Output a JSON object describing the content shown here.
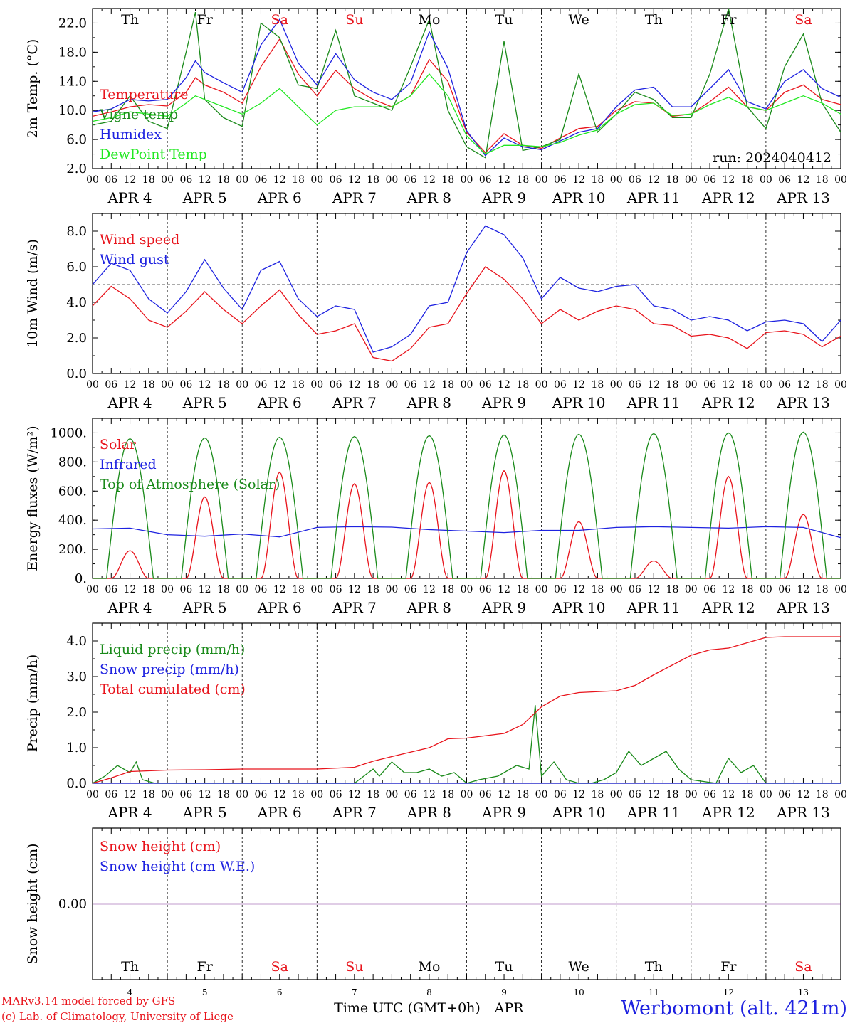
{
  "run_label": "run: 2024040412",
  "footer": {
    "model_line": "MARv3.14 model forced by GFS",
    "credit_line": "(c) Lab. of Climatology, University of Liege",
    "time_axis_label": "Time UTC (GMT+0h)",
    "month_label": "APR",
    "station": "Werbomont (alt. 421m)"
  },
  "weekdays": [
    "Th",
    "Fr",
    "Sa",
    "Su",
    "Mo",
    "Tu",
    "We",
    "Th",
    "Fr",
    "Sa"
  ],
  "weekend_color": "#e8141c",
  "weekday_color": "#000000",
  "day_numbers": [
    "4",
    "5",
    "6",
    "7",
    "8",
    "9",
    "10",
    "11",
    "12",
    "13"
  ],
  "date_labels": [
    "APR  4",
    "APR  5",
    "APR  6",
    "APR  7",
    "APR  8",
    "APR  9",
    "APR 10",
    "APR 11",
    "APR 12",
    "APR 13"
  ],
  "hour_ticks": [
    "00",
    "06",
    "12",
    "18"
  ],
  "chart_data": [
    {
      "type": "line",
      "ylabel": "2m Temp. (°C)",
      "ylim": [
        2,
        24
      ],
      "yticks": [
        "2.0",
        "6.0",
        "10.0",
        "14.0",
        "18.0",
        "22.0"
      ],
      "x_unit": "hours since 2024-04-04 00 UTC",
      "series": [
        {
          "name": "Temperature",
          "color": "#e8141c",
          "x": [
            0,
            6,
            12,
            18,
            24,
            30,
            33,
            36,
            42,
            48,
            54,
            60,
            66,
            72,
            78,
            84,
            90,
            96,
            102,
            108,
            114,
            120,
            126,
            132,
            138,
            144,
            150,
            156,
            162,
            168,
            174,
            180,
            186,
            192,
            198,
            204,
            210,
            216,
            222,
            228,
            234,
            240
          ],
          "values": [
            9.2,
            9.8,
            10.5,
            10.8,
            10.6,
            12.5,
            14.5,
            13.5,
            12.5,
            11.0,
            16.0,
            19.8,
            15.0,
            12.0,
            15.5,
            13.0,
            11.5,
            10.5,
            12.0,
            17.0,
            14.0,
            7.0,
            4.2,
            6.8,
            5.2,
            4.8,
            6.2,
            7.5,
            7.8,
            10.0,
            11.2,
            11.0,
            9.2,
            9.5,
            11.2,
            13.2,
            10.5,
            10.0,
            12.5,
            13.5,
            11.5,
            10.8
          ]
        },
        {
          "name": "Vigne temp",
          "color": "#1a8a1a",
          "x": [
            0,
            6,
            12,
            18,
            24,
            30,
            33,
            36,
            42,
            48,
            54,
            60,
            66,
            72,
            78,
            84,
            90,
            96,
            102,
            108,
            114,
            120,
            126,
            132,
            138,
            144,
            150,
            156,
            162,
            168,
            174,
            180,
            186,
            192,
            198,
            204,
            210,
            216,
            222,
            228,
            234,
            240
          ],
          "values": [
            8.0,
            8.5,
            12.0,
            8.5,
            7.5,
            18.0,
            23.5,
            11.5,
            9.0,
            7.8,
            22.0,
            20.0,
            13.5,
            13.0,
            21.0,
            12.0,
            11.0,
            10.0,
            16.0,
            22.5,
            10.0,
            5.0,
            3.5,
            19.5,
            4.5,
            5.0,
            6.0,
            15.0,
            7.0,
            9.5,
            12.5,
            11.5,
            9.0,
            9.0,
            15.0,
            24.0,
            10.5,
            7.5,
            16.0,
            20.5,
            11.0,
            7.0
          ]
        },
        {
          "name": "Humidex",
          "color": "#1e22e0",
          "x": [
            0,
            6,
            12,
            18,
            24,
            30,
            33,
            36,
            42,
            48,
            54,
            60,
            66,
            72,
            78,
            84,
            90,
            96,
            102,
            108,
            114,
            120,
            126,
            132,
            138,
            144,
            150,
            156,
            162,
            168,
            174,
            180,
            186,
            192,
            198,
            204,
            210,
            216,
            222,
            228,
            234,
            240
          ],
          "values": [
            9.8,
            10.2,
            11.5,
            11.3,
            11.5,
            14.5,
            16.8,
            15.2,
            13.8,
            12.5,
            19.0,
            22.5,
            16.5,
            13.5,
            17.8,
            14.2,
            12.5,
            11.5,
            13.8,
            20.8,
            15.8,
            7.2,
            3.8,
            6.2,
            5.0,
            4.6,
            5.8,
            7.0,
            7.5,
            10.5,
            12.8,
            13.2,
            10.5,
            10.5,
            13.0,
            15.6,
            11.2,
            10.2,
            14.0,
            15.6,
            13.0,
            11.8
          ]
        },
        {
          "name": "DewPoint Temp",
          "color": "#22e822",
          "x": [
            0,
            6,
            12,
            18,
            24,
            30,
            33,
            36,
            42,
            48,
            54,
            60,
            66,
            72,
            78,
            84,
            90,
            96,
            102,
            108,
            114,
            120,
            126,
            132,
            138,
            144,
            150,
            156,
            162,
            168,
            174,
            180,
            186,
            192,
            198,
            204,
            210,
            216,
            222,
            228,
            234,
            240
          ],
          "values": [
            8.5,
            9.0,
            9.8,
            9.5,
            9.2,
            11.0,
            12.0,
            11.5,
            10.5,
            9.5,
            11.0,
            13.0,
            10.5,
            8.0,
            10.0,
            10.5,
            10.5,
            10.5,
            12.0,
            15.0,
            12.0,
            6.5,
            4.0,
            5.2,
            5.2,
            5.0,
            5.6,
            6.6,
            7.3,
            9.5,
            10.8,
            11.0,
            9.3,
            9.5,
            10.8,
            11.8,
            10.5,
            10.0,
            11.0,
            12.0,
            11.0,
            9.5
          ]
        }
      ]
    },
    {
      "type": "line",
      "ylabel": "10m Wind (m/s)",
      "ylim": [
        0,
        9
      ],
      "yticks": [
        "0.0",
        "2.0",
        "4.0",
        "6.0",
        "8.0"
      ],
      "reference_line_y": 5.0,
      "series": [
        {
          "name": "Wind speed",
          "color": "#e8141c",
          "x": [
            0,
            6,
            12,
            18,
            24,
            30,
            36,
            42,
            48,
            54,
            60,
            66,
            72,
            78,
            84,
            90,
            96,
            102,
            108,
            114,
            120,
            126,
            132,
            138,
            144,
            150,
            156,
            162,
            168,
            174,
            180,
            186,
            192,
            198,
            204,
            210,
            216,
            222,
            228,
            234,
            240
          ],
          "values": [
            3.8,
            4.9,
            4.2,
            3.0,
            2.6,
            3.5,
            4.6,
            3.6,
            2.8,
            3.8,
            4.7,
            3.3,
            2.2,
            2.4,
            2.8,
            0.9,
            0.7,
            1.4,
            2.6,
            2.8,
            4.5,
            6.0,
            5.3,
            4.2,
            2.8,
            3.6,
            3.0,
            3.5,
            3.8,
            3.6,
            2.8,
            2.7,
            2.1,
            2.2,
            2.0,
            1.4,
            2.3,
            2.4,
            2.2,
            1.5,
            2.1
          ]
        },
        {
          "name": "Wind gust",
          "color": "#1e22e0",
          "x": [
            0,
            6,
            12,
            18,
            24,
            30,
            36,
            42,
            48,
            54,
            60,
            66,
            72,
            78,
            84,
            90,
            96,
            102,
            108,
            114,
            120,
            126,
            132,
            138,
            144,
            150,
            156,
            162,
            168,
            174,
            180,
            186,
            192,
            198,
            204,
            210,
            216,
            222,
            228,
            234,
            240
          ],
          "values": [
            5.0,
            6.2,
            5.8,
            4.2,
            3.4,
            4.6,
            6.4,
            4.8,
            3.6,
            5.8,
            6.3,
            4.2,
            3.2,
            3.8,
            3.6,
            1.2,
            1.5,
            2.2,
            3.8,
            4.0,
            6.8,
            8.3,
            7.8,
            6.5,
            4.2,
            5.4,
            4.8,
            4.6,
            4.9,
            5.0,
            3.8,
            3.6,
            3.0,
            3.2,
            3.0,
            2.4,
            2.9,
            3.0,
            2.8,
            1.8,
            3.0
          ]
        }
      ]
    },
    {
      "type": "line",
      "ylabel": "Energy fluxes (W/m²)",
      "ylim": [
        0,
        1100
      ],
      "yticks": [
        "0.",
        "200.",
        "400.",
        "600.",
        "800.",
        "1000."
      ],
      "series": [
        {
          "name": "Solar",
          "color": "#e8141c",
          "daily_peak_hour": 12,
          "daily_peaks": [
            190,
            560,
            730,
            650,
            660,
            740,
            390,
            120,
            700,
            440
          ]
        },
        {
          "name": "Infrared",
          "color": "#1e22e0",
          "x": [
            0,
            12,
            24,
            36,
            48,
            60,
            72,
            84,
            96,
            108,
            120,
            132,
            144,
            156,
            168,
            180,
            192,
            204,
            216,
            228,
            240
          ],
          "values": [
            340,
            345,
            300,
            290,
            305,
            285,
            350,
            355,
            352,
            335,
            325,
            315,
            330,
            330,
            350,
            355,
            350,
            345,
            355,
            350,
            280
          ]
        },
        {
          "name": "Top of Atmosphere (Solar)",
          "color": "#1a8a1a",
          "daily_peak_hour": 12,
          "daily_peaks": [
            960,
            965,
            970,
            975,
            980,
            985,
            990,
            995,
            1000,
            1005
          ]
        }
      ]
    },
    {
      "type": "line",
      "ylabel": "Precip (mm/h)",
      "ylim": [
        0,
        4.5
      ],
      "yticks": [
        "0.0",
        "1.0",
        "2.0",
        "3.0",
        "4.0"
      ],
      "series": [
        {
          "name": "Liquid precip (mm/h)",
          "color": "#1a8a1a",
          "x": [
            0,
            4,
            8,
            12,
            14,
            16,
            20,
            24,
            48,
            72,
            84,
            90,
            92,
            96,
            100,
            104,
            108,
            112,
            116,
            120,
            124,
            130,
            136,
            140,
            142,
            144,
            148,
            152,
            156,
            160,
            164,
            168,
            172,
            176,
            180,
            184,
            188,
            192,
            200,
            204,
            208,
            212,
            216,
            240
          ],
          "values": [
            0,
            0.2,
            0.5,
            0.3,
            0.6,
            0.1,
            0,
            0,
            0,
            0,
            0,
            0.4,
            0.2,
            0.6,
            0.3,
            0.3,
            0.4,
            0.2,
            0.3,
            0,
            0.1,
            0.2,
            0.5,
            0.4,
            2.2,
            0.2,
            0.6,
            0.1,
            0,
            0,
            0.1,
            0.3,
            0.9,
            0.5,
            0.7,
            0.9,
            0.4,
            0.1,
            0,
            0.7,
            0.3,
            0.5,
            0,
            0
          ]
        },
        {
          "name": "Snow precip (mm/h)",
          "color": "#1e22e0",
          "x": [
            0,
            240
          ],
          "values": [
            0,
            0
          ]
        },
        {
          "name": "Total cumulated (cm)",
          "color": "#e8141c",
          "x": [
            0,
            6,
            12,
            24,
            36,
            48,
            72,
            84,
            90,
            96,
            108,
            114,
            120,
            132,
            138,
            144,
            150,
            156,
            168,
            174,
            180,
            192,
            198,
            204,
            210,
            216,
            222,
            228,
            240
          ],
          "values": [
            0,
            0.15,
            0.33,
            0.37,
            0.38,
            0.4,
            0.4,
            0.45,
            0.62,
            0.75,
            1.0,
            1.25,
            1.27,
            1.4,
            1.65,
            2.15,
            2.45,
            2.55,
            2.6,
            2.75,
            3.05,
            3.6,
            3.75,
            3.8,
            3.95,
            4.1,
            4.12,
            4.12,
            4.12
          ]
        }
      ]
    },
    {
      "type": "line",
      "ylabel": "Snow height (cm)",
      "ylim": [
        -1,
        1
      ],
      "yticks": [
        "0.00"
      ],
      "series": [
        {
          "name": "Snow height (cm)",
          "color": "#e8141c",
          "x": [
            0,
            240
          ],
          "values": [
            0,
            0
          ]
        },
        {
          "name": "Snow height (cm W.E.)",
          "color": "#1e22e0",
          "x": [
            0,
            240
          ],
          "values": [
            0,
            0
          ]
        }
      ]
    }
  ]
}
